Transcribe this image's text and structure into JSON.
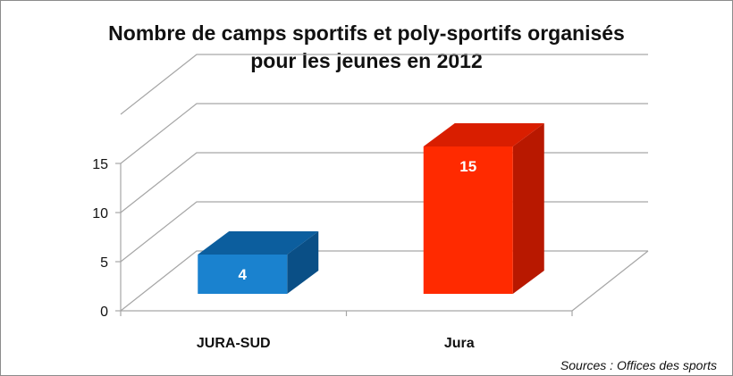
{
  "chart_data": {
    "type": "bar",
    "title_line1": "Nombre de camps sportifs et poly-sportifs organisés",
    "title_line2": "pour les jeunes en 2012",
    "categories": [
      "JURA-SUD",
      "Jura"
    ],
    "values": [
      4,
      15
    ],
    "data_labels": [
      "4",
      "15"
    ],
    "yticks": [
      "0",
      "5",
      "10",
      "15"
    ],
    "ylim": [
      0,
      20
    ],
    "grid": true,
    "legend": "none",
    "three_d": true,
    "colors": {
      "bar1_front": "#1a82cf",
      "bar1_top": "#0c5e9e",
      "bar1_side": "#0a4f86",
      "bar2_front": "#ff2a00",
      "bar2_top": "#d91e00",
      "bar2_side": "#b81800",
      "axis": "#a6a6a6"
    },
    "source": "Sources : Offices des sports"
  }
}
